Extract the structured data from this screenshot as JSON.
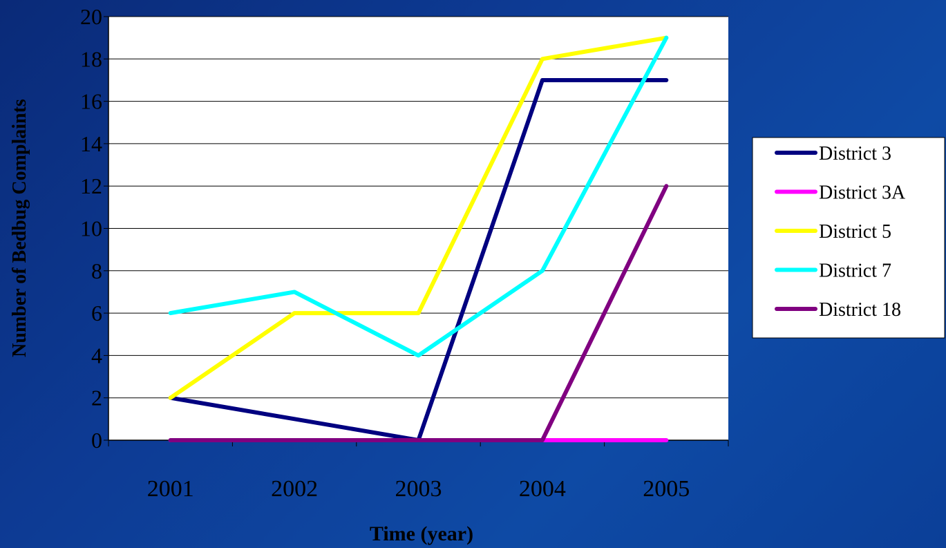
{
  "chart_data": {
    "type": "line",
    "title": "",
    "xlabel": "Time (year)",
    "ylabel": "Number of Bedbug Complaints",
    "categories": [
      "2001",
      "2002",
      "2003",
      "2004",
      "2005"
    ],
    "ylim": [
      0,
      20
    ],
    "yticks": [
      "0",
      "2",
      "4",
      "6",
      "8",
      "10",
      "12",
      "14",
      "16",
      "18",
      "20"
    ],
    "grid": true,
    "legend_position": "right",
    "series": [
      {
        "name": "District 3",
        "color": "#000080",
        "values": [
          2,
          1,
          0,
          17,
          17
        ]
      },
      {
        "name": "District 3A",
        "color": "#ff00ff",
        "values": [
          0,
          0,
          0,
          0,
          0
        ]
      },
      {
        "name": "District 5",
        "color": "#ffff00",
        "values": [
          2,
          6,
          6,
          18,
          19
        ]
      },
      {
        "name": "District 7",
        "color": "#00ffff",
        "values": [
          6,
          7,
          4,
          8,
          19
        ]
      },
      {
        "name": "District 18",
        "color": "#800080",
        "values": [
          0,
          0,
          0,
          0,
          12
        ]
      }
    ]
  }
}
